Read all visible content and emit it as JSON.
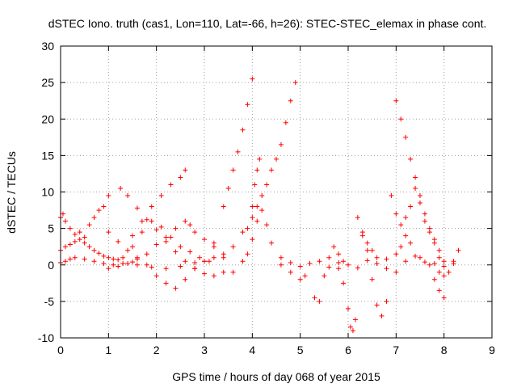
{
  "chart_data": {
    "type": "scatter",
    "title": "dSTEC Iono. truth (cas1, Lon=110, Lat=-66, h=26): STEC-STEC_elemax in phase cont.",
    "xlabel": "GPS time / hours of day 068 of year 2015",
    "ylabel": "dSTEC  / TECUs",
    "xlim": [
      0,
      9
    ],
    "ylim": [
      -10,
      30
    ],
    "x_ticks": [
      "0",
      "1",
      "2",
      "3",
      "4",
      "5",
      "6",
      "7",
      "8",
      "9"
    ],
    "y_ticks": [
      "-10",
      "-5",
      "0",
      "5",
      "10",
      "15",
      "20",
      "25",
      "30"
    ],
    "grid": true,
    "marker": "+",
    "color": "#ff0000",
    "series": [
      {
        "x": [
          0.0,
          0.1,
          0.2,
          0.3,
          0.5,
          0.7,
          0.9,
          1.1,
          1.3,
          1.5
        ],
        "y": [
          0.3,
          0.5,
          0.8,
          1.0,
          0.8,
          0.5,
          0.2,
          0.0,
          0.2,
          0.4
        ]
      },
      {
        "x": [
          0.0,
          0.05,
          0.1,
          0.2,
          0.3,
          0.4,
          0.5,
          0.6,
          0.7,
          0.8,
          0.9,
          1.0
        ],
        "y": [
          6.5,
          7.0,
          6.0,
          5.0,
          4.2,
          4.5,
          3.8,
          5.5,
          6.5,
          7.5,
          8.0,
          9.5
        ]
      },
      {
        "x": [
          0.0,
          0.1,
          0.2,
          0.3,
          0.4,
          0.5,
          0.6,
          0.7,
          0.8,
          0.9,
          1.0,
          1.1,
          1.2
        ],
        "y": [
          2.0,
          2.5,
          2.8,
          3.2,
          3.5,
          3.0,
          2.5,
          2.0,
          1.6,
          1.2,
          1.0,
          0.8,
          0.7
        ]
      },
      {
        "x": [
          1.0,
          1.2,
          1.4,
          1.6,
          1.8,
          2.0,
          2.2,
          2.4,
          2.6,
          2.7,
          2.8,
          3.0,
          3.2,
          3.4
        ],
        "y": [
          -0.5,
          -0.2,
          0.2,
          0.8,
          1.5,
          2.8,
          3.8,
          5.0,
          6.0,
          5.5,
          4.5,
          3.5,
          2.5,
          1.5
        ]
      },
      {
        "x": [
          1.25,
          1.4,
          1.6,
          1.8,
          2.0,
          2.2,
          2.4,
          2.6,
          2.8,
          3.0,
          3.2,
          3.4
        ],
        "y": [
          10.5,
          9.5,
          7.8,
          6.2,
          4.8,
          3.2,
          1.8,
          0.5,
          -0.5,
          -1.2,
          -1.5,
          -1.0
        ]
      },
      {
        "x": [
          1.3,
          1.5,
          1.7,
          1.9,
          2.1,
          2.3,
          2.5,
          2.7,
          2.9
        ],
        "y": [
          1.0,
          2.5,
          4.5,
          6.0,
          5.2,
          3.8,
          2.5,
          1.8,
          1.0
        ]
      },
      {
        "x": [
          1.5,
          1.7,
          1.9,
          2.1,
          2.3,
          2.5,
          2.6
        ],
        "y": [
          4.0,
          6.0,
          8.0,
          9.5,
          11.0,
          12.0,
          13.0
        ]
      },
      {
        "x": [
          1.0,
          1.2,
          1.4,
          1.6,
          1.8,
          2.0,
          2.2,
          2.4,
          2.6,
          2.8,
          3.0,
          3.2
        ],
        "y": [
          4.5,
          3.2,
          2.0,
          1.0,
          0.0,
          -1.5,
          -2.5,
          -3.2,
          -2.0,
          -0.5,
          0.5,
          1.0
        ]
      },
      {
        "x": [
          1.6,
          1.9,
          2.2,
          2.5,
          2.8,
          3.1
        ],
        "y": [
          0.0,
          -0.3,
          -0.5,
          -0.2,
          0.3,
          0.5
        ]
      },
      {
        "x": [
          3.0,
          3.2,
          3.4,
          3.5,
          3.6,
          3.7,
          3.8,
          3.9,
          4.0
        ],
        "y": [
          0.5,
          3.0,
          8.0,
          10.5,
          13.0,
          15.5,
          18.5,
          22.0,
          25.5
        ]
      },
      {
        "x": [
          3.4,
          3.6,
          3.8,
          4.0,
          4.1,
          4.2,
          4.3,
          4.4,
          4.5,
          4.6,
          4.7,
          4.8,
          4.9
        ],
        "y": [
          1.0,
          2.5,
          4.5,
          6.5,
          8.0,
          9.5,
          11.0,
          13.0,
          14.5,
          16.5,
          19.5,
          22.5,
          25.0
        ]
      },
      {
        "x": [
          3.6,
          3.8,
          3.9,
          4.0,
          4.1,
          4.2,
          4.3,
          4.4,
          4.6,
          4.8,
          5.0,
          5.1
        ],
        "y": [
          -1.0,
          0.5,
          1.5,
          3.5,
          6.0,
          7.5,
          5.5,
          3.0,
          1.0,
          -1.0,
          -2.0,
          -1.5
        ]
      },
      {
        "x": [
          3.9,
          4.0,
          4.05,
          4.1,
          4.15
        ],
        "y": [
          5.0,
          8.0,
          11.0,
          13.0,
          14.5
        ]
      },
      {
        "x": [
          4.6,
          4.8,
          5.0,
          5.2,
          5.4,
          5.6,
          5.8,
          6.0,
          6.2,
          6.4,
          6.6,
          6.8,
          7.0,
          7.2,
          7.4,
          7.6,
          7.8,
          8.0,
          8.2
        ],
        "y": [
          0.0,
          0.3,
          -0.2,
          0.2,
          0.5,
          -0.3,
          0.3,
          0.0,
          -0.4,
          0.6,
          0.2,
          0.8,
          1.5,
          0.5,
          1.2,
          0.4,
          0.2,
          -0.2,
          0.2
        ]
      },
      {
        "x": [
          5.3,
          5.4,
          5.5,
          5.6,
          5.7,
          5.8,
          5.9
        ],
        "y": [
          -4.5,
          -5.0,
          -1.5,
          1.0,
          2.5,
          1.5,
          0.5
        ]
      },
      {
        "x": [
          5.8,
          5.9,
          6.0,
          6.05,
          6.1,
          6.15
        ],
        "y": [
          -0.5,
          -2.5,
          -6.0,
          -8.5,
          -9.0,
          -7.5
        ]
      },
      {
        "x": [
          6.2,
          6.3,
          6.4,
          6.5,
          6.6,
          6.7,
          6.8
        ],
        "y": [
          6.5,
          4.5,
          2.0,
          -2.0,
          -5.5,
          -7.0,
          -5.0
        ]
      },
      {
        "x": [
          6.3,
          6.4,
          6.5,
          6.6,
          6.8,
          7.0,
          7.1,
          7.2,
          7.3,
          7.5,
          7.7,
          7.9
        ],
        "y": [
          4.0,
          3.0,
          2.0,
          1.0,
          -0.5,
          -1.0,
          2.5,
          4.0,
          3.0,
          1.0,
          0.0,
          -1.0
        ]
      },
      {
        "x": [
          6.9,
          7.0,
          7.1,
          7.2,
          7.3,
          7.4,
          7.5,
          7.6,
          7.7,
          7.8,
          7.9,
          8.0
        ],
        "y": [
          9.5,
          7.0,
          5.5,
          6.5,
          8.0,
          10.5,
          8.5,
          6.0,
          4.5,
          3.5,
          2.0,
          0.5
        ]
      },
      {
        "x": [
          7.0,
          7.1,
          7.2,
          7.3,
          7.4,
          7.5,
          7.6,
          7.7,
          7.8,
          7.9,
          8.0
        ],
        "y": [
          22.5,
          20.0,
          17.5,
          14.5,
          12.0,
          9.5,
          7.0,
          5.0,
          3.0,
          1.0,
          -1.5
        ]
      },
      {
        "x": [
          7.8,
          7.9,
          8.0,
          8.1,
          8.2,
          8.3
        ],
        "y": [
          -2.0,
          -3.5,
          -4.5,
          -1.0,
          0.5,
          2.0
        ]
      }
    ]
  }
}
